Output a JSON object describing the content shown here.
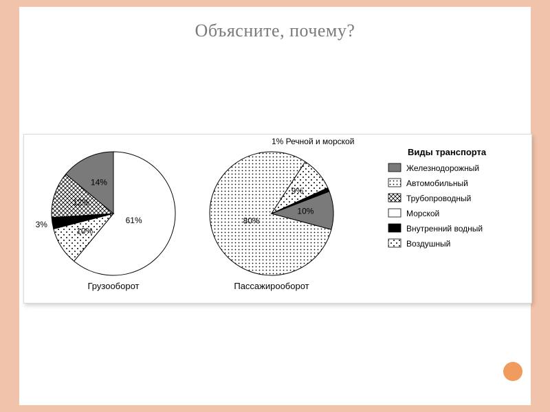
{
  "title": "Объясните, почему?",
  "title_color": "#7a7a7a",
  "title_fontsize": 26,
  "background_color": "#ffffff",
  "frame_color": "#f2c3ab",
  "accent_dot_color": "#f29b5e",
  "chart": {
    "type": "pie_pair",
    "panel_border_color": "#d9d9d9",
    "panel_shadow": "2px 3px 6px rgba(0,0,0,0.18)",
    "annotation_font": 12,
    "caption_font": 13,
    "legend_title": "Виды транспорта",
    "legend_title_font": 13,
    "legend_font": 12,
    "top_annotation": "1%  Речной и морской",
    "series_colors": {
      "rail": "#7a7a7a",
      "auto_pattern": "fine-dots",
      "pipeline_pattern": "crosshatch",
      "sea": "#ffffff",
      "inland_water": "#000000",
      "air_pattern": "sparse-dots"
    },
    "stroke_color": "#000000",
    "stroke_width": 1,
    "legend_items": [
      {
        "key": "rail",
        "label": "Железнодорожный"
      },
      {
        "key": "auto",
        "label": "Автомобильный"
      },
      {
        "key": "pipeline",
        "label": "Трубопроводный"
      },
      {
        "key": "sea",
        "label": "Морской"
      },
      {
        "key": "inland_water",
        "label": "Внутренний водный"
      },
      {
        "key": "air",
        "label": "Воздушный"
      }
    ],
    "left": {
      "caption": "Грузооборот",
      "radius": 90,
      "slices": [
        {
          "key": "sea",
          "value": 61,
          "label": "61%",
          "label_inside": true
        },
        {
          "key": "air",
          "value": 10,
          "label": "10%",
          "label_inside": true
        },
        {
          "key": "inland_water",
          "value": 3,
          "label": "3%",
          "label_inside": false
        },
        {
          "key": "pipeline",
          "value": 12,
          "label": "12%",
          "label_inside": true
        },
        {
          "key": "rail",
          "value": 14,
          "label": "14%",
          "label_inside": true
        }
      ]
    },
    "right": {
      "caption": "Пассажирооборот",
      "radius": 90,
      "slices": [
        {
          "key": "auto",
          "value": 80,
          "label": "80%",
          "label_inside": true
        },
        {
          "key": "air",
          "value": 9,
          "label": "9%",
          "label_inside": true
        },
        {
          "key": "river_sea",
          "value": 1,
          "label": "",
          "label_inside": false
        },
        {
          "key": "rail",
          "value": 10,
          "label": "10%",
          "label_inside": true
        }
      ]
    }
  }
}
